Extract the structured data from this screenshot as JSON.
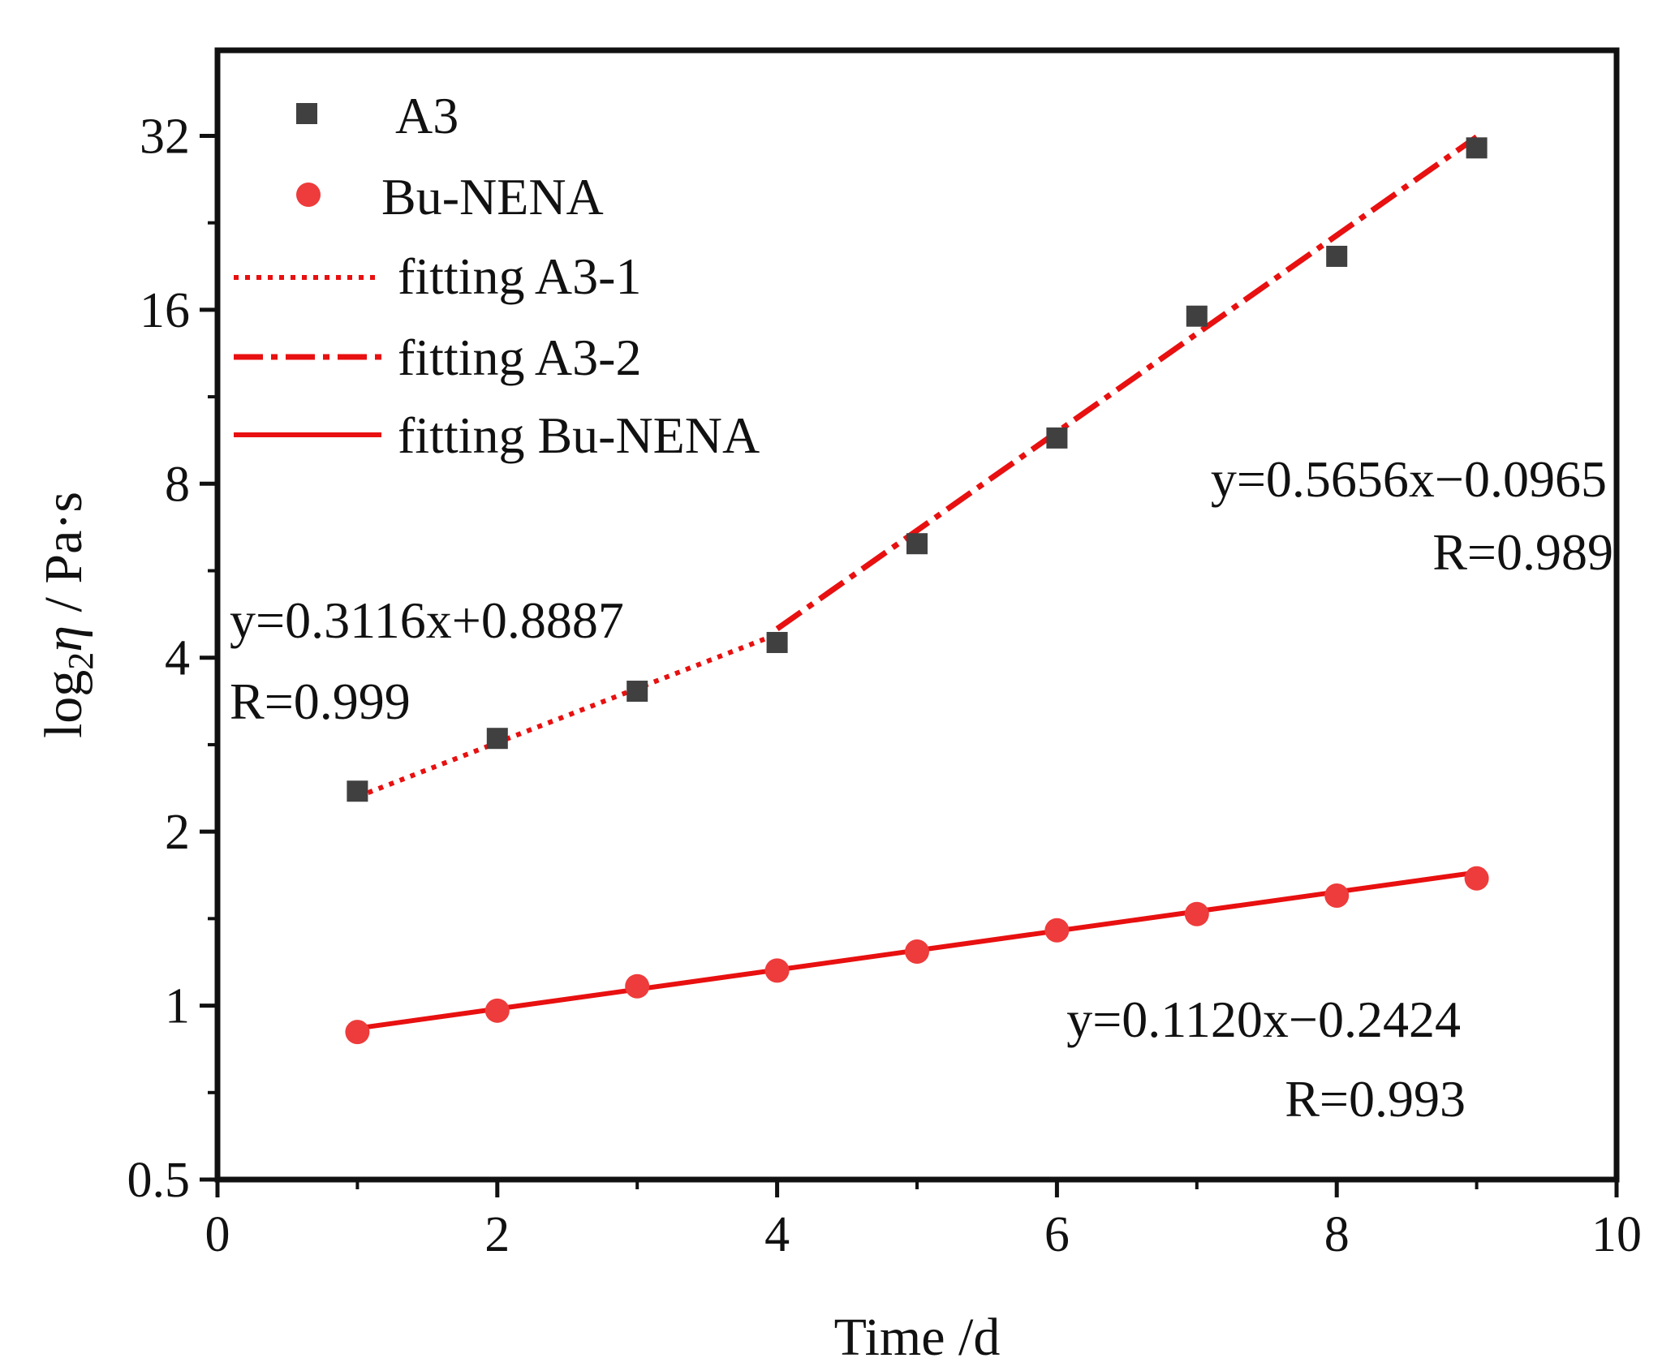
{
  "chart_data": {
    "type": "scatter",
    "title": "",
    "xlabel": "Time /d",
    "ylabel_parts": [
      "log",
      "2",
      "η",
      " / Pa·s"
    ],
    "xlim": [
      0,
      10
    ],
    "ylim": [
      0.5,
      45
    ],
    "yscale": "log2",
    "xticks": [
      0,
      2,
      4,
      6,
      8,
      10
    ],
    "xtick_labels": [
      "0",
      "2",
      "4",
      "6",
      "8",
      "10"
    ],
    "yticks": [
      0.5,
      1,
      2,
      4,
      8,
      16,
      32
    ],
    "ytick_labels": [
      "0.5",
      "1",
      "2",
      "4",
      "8",
      "16",
      "32"
    ],
    "grid": false,
    "legend_position": "top-left",
    "colors": {
      "A3": "#404040",
      "Bu-NENA": "#ee3b3b",
      "fit": "#e81010",
      "axis": "#111111"
    },
    "series": [
      {
        "name": "A3",
        "marker": "square",
        "x": [
          1,
          2,
          3,
          4,
          5,
          6,
          7,
          8,
          9
        ],
        "y": [
          2.35,
          2.9,
          3.5,
          4.25,
          6.3,
          9.6,
          15.6,
          19.8,
          30.5
        ]
      },
      {
        "name": "Bu-NENA",
        "marker": "circle",
        "x": [
          1,
          2,
          3,
          4,
          5,
          6,
          7,
          8,
          9
        ],
        "y": [
          0.9,
          0.98,
          1.08,
          1.15,
          1.24,
          1.35,
          1.44,
          1.55,
          1.66
        ]
      }
    ],
    "fits": [
      {
        "name": "fitting A3-1",
        "style": "dotted",
        "slope": 0.3116,
        "intercept": 0.8887,
        "x_range": [
          1,
          4
        ],
        "equation": "y=0.3116x+0.8887",
        "r_label": "R=0.999"
      },
      {
        "name": "fitting A3-2",
        "style": "dashdot",
        "slope": 0.5656,
        "intercept": -0.0965,
        "x_range": [
          4,
          9
        ],
        "equation": "y=0.5656x−0.0965",
        "r_label": "R=0.989"
      },
      {
        "name": "fitting Bu-NENA",
        "style": "solid",
        "slope": 0.112,
        "intercept": -0.2424,
        "x_range": [
          1,
          9
        ],
        "equation": "y=0.1120x−0.2424",
        "r_label": "R=0.993"
      }
    ]
  }
}
